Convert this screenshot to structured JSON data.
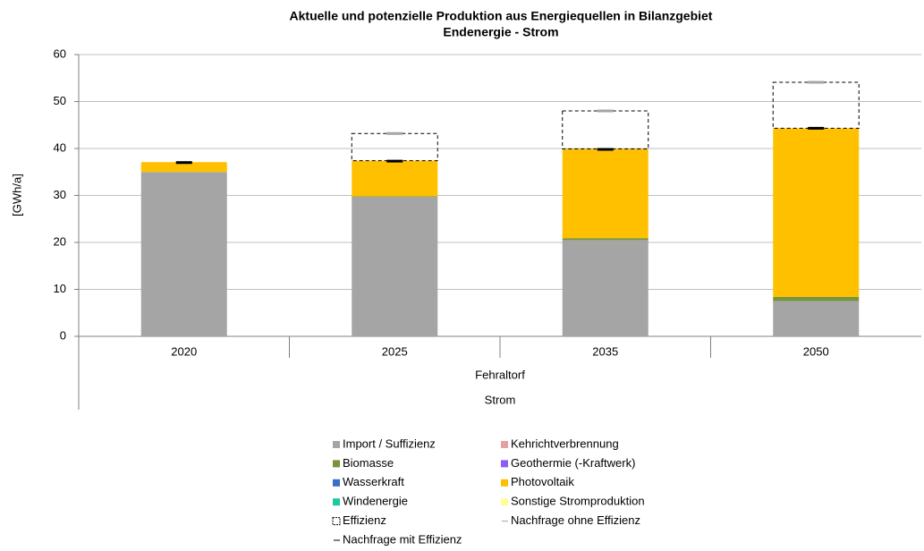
{
  "chart_data": {
    "type": "bar",
    "stacked": true,
    "title": "Aktuelle und potenzielle Produktion aus Energiequellen in Bilanzgebiet",
    "subtitle": "Endenergie - Strom",
    "y_label": "[GWh/a]",
    "categories": [
      "2020",
      "2025",
      "2035",
      "2050"
    ],
    "group_labels": [
      "Fehraltorf",
      "Strom"
    ],
    "ylim": [
      0,
      60
    ],
    "yticks": [
      0,
      10,
      20,
      30,
      40,
      50,
      60
    ],
    "grid": true,
    "series": [
      {
        "name": "Import / Suffizienz",
        "kind": "bar",
        "color": "#a5a5a5",
        "values": [
          35,
          29.7,
          20.5,
          7.5
        ]
      },
      {
        "name": "Kehrichtverbrennung",
        "kind": "bar",
        "color": "#e6a0a0",
        "values": [
          0,
          0,
          0,
          0
        ]
      },
      {
        "name": "Biomasse",
        "kind": "bar",
        "color": "#77933c",
        "values": [
          0,
          0.1,
          0.4,
          0.9
        ]
      },
      {
        "name": "Geothermie (-Kraftwerk)",
        "kind": "bar",
        "color": "#8b5cf6",
        "values": [
          0,
          0,
          0,
          0
        ]
      },
      {
        "name": "Wasserkraft",
        "kind": "bar",
        "color": "#3a6fc4",
        "values": [
          0,
          0,
          0,
          0
        ]
      },
      {
        "name": "Photovoltaik",
        "kind": "bar",
        "color": "#ffc000",
        "values": [
          2.1,
          7.6,
          19,
          35.9
        ]
      },
      {
        "name": "Windenergie",
        "kind": "bar",
        "color": "#1ec8a0",
        "values": [
          0,
          0,
          0,
          0
        ]
      },
      {
        "name": "Sonstige Stromproduktion",
        "kind": "bar",
        "color": "#ffff99",
        "values": [
          0,
          0,
          0,
          0
        ]
      },
      {
        "name": "Effizienz",
        "kind": "dashed",
        "color": "#000000",
        "values": [
          0,
          5.8,
          8.1,
          9.8
        ]
      },
      {
        "name": "Nachfrage ohne Effizienz",
        "kind": "marker",
        "color": "#a5a5a5",
        "values": [
          37,
          43.2,
          48,
          54.1
        ]
      },
      {
        "name": "Nachfrage mit Effizienz",
        "kind": "marker",
        "color": "#000000",
        "values": [
          37,
          37.3,
          39.8,
          44.3
        ]
      }
    ]
  }
}
